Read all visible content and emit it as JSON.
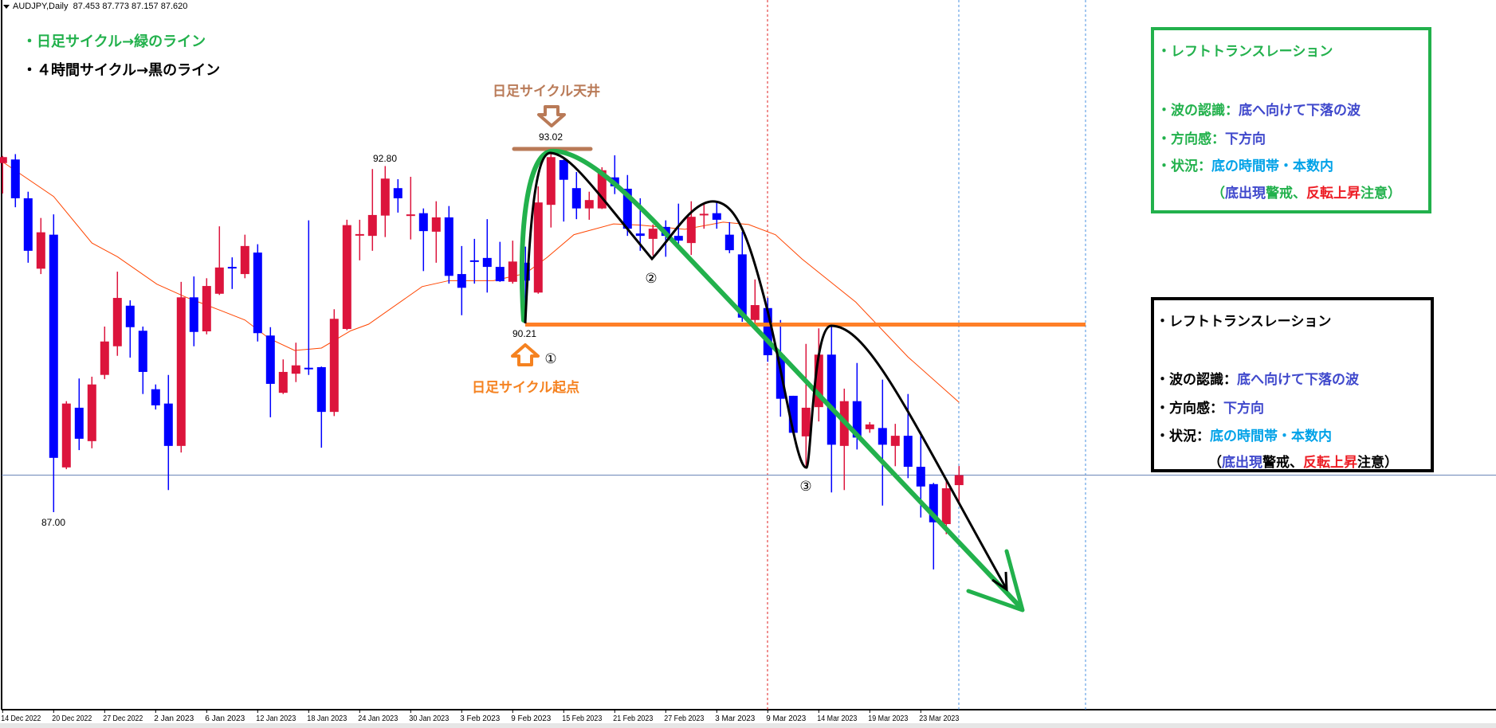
{
  "header": {
    "symbol_timeframe": "AUDJPY,Daily",
    "ohlc": "87.453 87.773 87.157 87.620"
  },
  "legend": {
    "daily": "・日足サイクル→緑のライン",
    "h4": "・４時間サイクル→黒のライン"
  },
  "annotations": {
    "top_label": "日足サイクル天井",
    "top_price": "93.02",
    "high_label": "92.80",
    "start_price": "90.21",
    "start_label": "日足サイクル起点",
    "low_label": "87.00",
    "marker1": "①",
    "marker2": "②",
    "marker3": "③"
  },
  "boxes": {
    "green": {
      "title": "・レフトトランスレーション",
      "wave_key": "・波の認識：",
      "wave_val": "底へ向けて下落の波",
      "dir_key": "・方向感：",
      "dir_val": "下方向",
      "sit_key": "・状況：",
      "sit_val": "底の時間帯・本数内",
      "note": [
        "（",
        "底出現",
        "警戒、",
        "反転上昇",
        "注意）"
      ]
    },
    "black": {
      "title": "・レフトトランスレーション",
      "wave_key": "・波の認識：",
      "wave_val": "底へ向けて下落の波",
      "dir_key": "・方向感：",
      "dir_val": "下方向",
      "sit_key": "・状況：",
      "sit_val": "底の時間帯・本数内",
      "note": [
        "（",
        "底出現",
        "警戒、",
        "反転上昇",
        "注意）"
      ]
    }
  },
  "chart_data": {
    "type": "candlestick",
    "symbol": "AUDJPY",
    "timeframe": "Daily",
    "ohlc_order": [
      "open",
      "high",
      "low",
      "close"
    ],
    "candles": [
      [
        92.85,
        92.97,
        92.34,
        92.95
      ],
      [
        92.91,
        93.0,
        92.11,
        92.26
      ],
      [
        92.26,
        92.37,
        91.18,
        91.38
      ],
      [
        91.08,
        91.93,
        90.99,
        91.69
      ],
      [
        91.65,
        91.99,
        87.0,
        87.91
      ],
      [
        87.75,
        88.86,
        87.72,
        88.82
      ],
      [
        88.75,
        89.24,
        88.04,
        88.23
      ],
      [
        88.19,
        89.27,
        88.07,
        89.14
      ],
      [
        89.3,
        90.11,
        89.23,
        89.86
      ],
      [
        89.78,
        91.03,
        89.62,
        90.59
      ],
      [
        90.46,
        90.55,
        89.59,
        90.1
      ],
      [
        90.04,
        90.11,
        88.98,
        89.35
      ],
      [
        89.06,
        89.14,
        88.72,
        88.79
      ],
      [
        88.82,
        89.3,
        87.37,
        88.11
      ],
      [
        88.11,
        90.86,
        88.0,
        90.6
      ],
      [
        90.6,
        90.95,
        89.78,
        90.02
      ],
      [
        90.03,
        90.92,
        89.98,
        90.79
      ],
      [
        90.66,
        91.79,
        90.64,
        91.1
      ],
      [
        91.11,
        91.27,
        90.74,
        91.1
      ],
      [
        90.99,
        91.65,
        90.92,
        91.46
      ],
      [
        91.35,
        91.49,
        89.86,
        90.0
      ],
      [
        89.96,
        90.1,
        88.59,
        89.15
      ],
      [
        89.0,
        89.56,
        88.98,
        89.35
      ],
      [
        89.32,
        89.84,
        89.18,
        89.46
      ],
      [
        89.42,
        91.89,
        89.3,
        89.41
      ],
      [
        89.43,
        89.44,
        88.08,
        88.68
      ],
      [
        88.68,
        90.4,
        88.61,
        90.24
      ],
      [
        90.07,
        91.9,
        90.05,
        91.81
      ],
      [
        91.65,
        91.9,
        91.22,
        91.66
      ],
      [
        91.63,
        92.75,
        91.38,
        91.98
      ],
      [
        91.97,
        92.8,
        91.61,
        92.59
      ],
      [
        92.43,
        92.58,
        92.02,
        92.26
      ],
      [
        91.98,
        92.62,
        91.57,
        91.99
      ],
      [
        92.01,
        92.09,
        91.04,
        91.71
      ],
      [
        91.7,
        92.21,
        91.18,
        91.94
      ],
      [
        91.94,
        92.13,
        90.83,
        90.96
      ],
      [
        90.99,
        91.46,
        90.3,
        90.76
      ],
      [
        91.22,
        91.58,
        90.83,
        91.2
      ],
      [
        91.26,
        91.91,
        90.68,
        91.11
      ],
      [
        91.11,
        91.53,
        90.86,
        90.87
      ],
      [
        90.86,
        91.55,
        90.83,
        91.2
      ],
      [
        91.18,
        91.45,
        90.21,
        90.88
      ],
      [
        90.68,
        92.46,
        90.66,
        92.19
      ],
      [
        92.15,
        93.02,
        91.77,
        92.95
      ],
      [
        92.9,
        92.91,
        91.87,
        92.57
      ],
      [
        92.43,
        92.7,
        91.91,
        92.09
      ],
      [
        92.09,
        92.37,
        91.9,
        92.23
      ],
      [
        92.09,
        92.78,
        92.08,
        92.73
      ],
      [
        92.61,
        92.98,
        92.33,
        92.46
      ],
      [
        92.42,
        92.65,
        91.63,
        91.75
      ],
      [
        91.67,
        92.26,
        91.38,
        91.63
      ],
      [
        91.58,
        91.82,
        91.3,
        91.75
      ],
      [
        91.78,
        91.89,
        91.28,
        91.63
      ],
      [
        91.63,
        92.17,
        91.5,
        91.55
      ],
      [
        91.51,
        92.21,
        91.31,
        91.95
      ],
      [
        91.99,
        92.17,
        91.75,
        92.0
      ],
      [
        92.01,
        92.21,
        91.75,
        91.9
      ],
      [
        91.65,
        91.86,
        91.34,
        91.39
      ],
      [
        91.32,
        91.7,
        90.19,
        90.26
      ],
      [
        90.22,
        90.9,
        90.17,
        90.47
      ],
      [
        90.42,
        90.59,
        89.52,
        89.63
      ],
      [
        89.63,
        90.22,
        88.6,
        88.9
      ],
      [
        88.95,
        88.95,
        88.33,
        88.33
      ],
      [
        88.27,
        89.82,
        87.75,
        88.75
      ],
      [
        88.76,
        90.08,
        88.52,
        89.64
      ],
      [
        89.64,
        90.12,
        87.33,
        88.13
      ],
      [
        88.11,
        89.07,
        87.37,
        88.86
      ],
      [
        88.86,
        89.5,
        88.05,
        88.25
      ],
      [
        88.39,
        88.51,
        88.33,
        88.47
      ],
      [
        88.41,
        89.22,
        87.11,
        88.13
      ],
      [
        88.11,
        88.48,
        87.77,
        88.28
      ],
      [
        88.28,
        88.98,
        87.57,
        87.76
      ],
      [
        87.76,
        88.35,
        86.91,
        87.43
      ],
      [
        87.47,
        87.49,
        86.04,
        86.83
      ],
      [
        86.8,
        87.52,
        86.63,
        87.4
      ],
      [
        87.453,
        87.773,
        87.157,
        87.62
      ]
    ],
    "moving_average": [
      [
        0,
        92.87
      ],
      [
        4,
        92.29
      ],
      [
        7,
        91.51
      ],
      [
        9,
        91.28
      ],
      [
        12.1,
        90.82
      ],
      [
        14.4,
        90.6
      ],
      [
        17.1,
        90.38
      ],
      [
        19,
        90.22
      ],
      [
        20.9,
        89.91
      ],
      [
        22.9,
        89.71
      ],
      [
        25,
        89.75
      ],
      [
        27.3,
        90.04
      ],
      [
        28.7,
        90.15
      ],
      [
        32.9,
        90.78
      ],
      [
        35,
        90.88
      ],
      [
        38.5,
        90.88
      ],
      [
        41,
        91.0
      ],
      [
        42.7,
        91.27
      ],
      [
        44.8,
        91.65
      ],
      [
        47.9,
        91.83
      ],
      [
        50,
        91.81
      ],
      [
        53.5,
        91.74
      ],
      [
        56.5,
        91.86
      ],
      [
        58.5,
        91.82
      ],
      [
        60.6,
        91.65
      ],
      [
        62.7,
        91.24
      ],
      [
        66.9,
        90.52
      ],
      [
        71,
        89.6
      ],
      [
        75,
        88.84
      ]
    ],
    "x_labels": [
      "14 Dec 2022",
      "20 Dec 2022",
      "27 Dec 2022",
      "2 Jan 2023",
      "6 Jan 2023",
      "12 Jan 2023",
      "18 Jan 2023",
      "24 Jan 2023",
      "30 Jan 2023",
      "3 Feb 2023",
      "9 Feb 2023",
      "15 Feb 2023",
      "21 Feb 2023",
      "27 Feb 2023",
      "3 Mar 2023",
      "9 Mar 2023",
      "14 Mar 2023",
      "19 Mar 2023",
      "23 Mar 2023"
    ],
    "current_price": 87.62,
    "support_level": 90.21,
    "top_level": 93.02,
    "colors": {
      "bull": "#dc143c",
      "bear": "#0000ff",
      "ma": "#ff4500",
      "daily_cycle": "#22b14c",
      "h4_cycle": "#000000",
      "level": "#ff7f27",
      "top_marker": "#b97a57",
      "current_price_line": "#6b86b8"
    }
  }
}
